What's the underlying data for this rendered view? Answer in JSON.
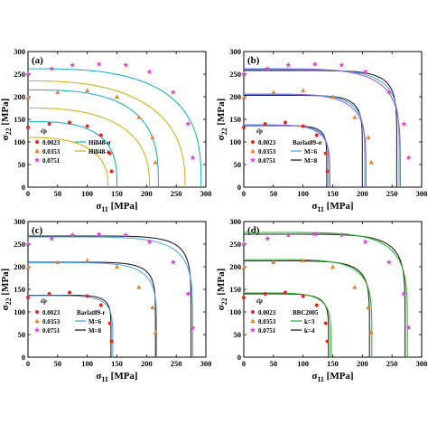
{
  "colors": {
    "red": "#e02a1f",
    "orange": "#e8822a",
    "magenta": "#e03fd8",
    "cyan": "#1fb3c9",
    "yellow": "#d4b21a",
    "black": "#222222",
    "blue": "#4aa3f2",
    "purple": "#8b5ad8",
    "green": "#2db82d"
  },
  "chart_data": [
    {
      "type": "scatter",
      "panel_label": "(a)",
      "xlabel": "σ11 [MPa]",
      "ylabel": "σ22 [MPa]",
      "xlim": [
        0,
        300
      ],
      "ylim": [
        0,
        300
      ],
      "xticks": [
        0,
        50,
        100,
        150,
        200,
        250,
        300
      ],
      "yticks": [
        0,
        50,
        100,
        150,
        200,
        250,
        300
      ],
      "legend_header": "ε̄p",
      "series": [
        {
          "name": "0.0023",
          "marker": "circle",
          "color": "red",
          "x": [
            0,
            36,
            70,
            100,
            123,
            138,
            141
          ],
          "y": [
            132,
            140,
            143,
            135,
            115,
            75,
            35
          ]
        },
        {
          "name": "0.0353",
          "marker": "triangle",
          "color": "orange",
          "x": [
            0,
            50,
            100,
            150,
            187,
            210,
            215
          ],
          "y": [
            198,
            210,
            214,
            200,
            155,
            110,
            55
          ]
        },
        {
          "name": "0.0751",
          "marker": "star",
          "color": "magenta",
          "x": [
            0,
            40,
            75,
            120,
            165,
            205,
            245,
            270,
            278
          ],
          "y": [
            250,
            262,
            270,
            272,
            270,
            255,
            210,
            140,
            65
          ]
        }
      ],
      "curves": [
        {
          "name": "Hill48-σ",
          "color": "cyan",
          "scale": [
            130,
            145,
            250,
            290
          ]
        },
        {
          "name": "Hill48-r",
          "color": "yellow",
          "scale": [
            130,
            125,
            215,
            195
          ]
        }
      ]
    },
    {
      "type": "scatter",
      "panel_label": "(b)",
      "xlabel": "σ11 [MPa]",
      "ylabel": "σ22 [MPa]",
      "xlim": [
        0,
        300
      ],
      "ylim": [
        0,
        300
      ],
      "xticks": [
        0,
        50,
        100,
        150,
        200,
        250,
        300
      ],
      "yticks": [
        0,
        50,
        100,
        150,
        200,
        250,
        300
      ],
      "legend_header": "ε̄p",
      "series": [
        {
          "name": "0.0023",
          "marker": "circle",
          "color": "red",
          "x": [
            0,
            36,
            70,
            100,
            123,
            138,
            141
          ],
          "y": [
            132,
            140,
            143,
            135,
            115,
            75,
            35
          ]
        },
        {
          "name": "0.0353",
          "marker": "triangle",
          "color": "orange",
          "x": [
            0,
            50,
            100,
            150,
            187,
            210,
            215
          ],
          "y": [
            198,
            210,
            214,
            200,
            155,
            110,
            55
          ]
        },
        {
          "name": "0.0751",
          "marker": "star",
          "color": "magenta",
          "x": [
            0,
            40,
            75,
            120,
            165,
            205,
            245,
            270,
            278
          ],
          "y": [
            250,
            262,
            270,
            272,
            270,
            255,
            210,
            140,
            65
          ]
        }
      ],
      "curves": [
        {
          "name": "Barlat89-σ",
          "color": "purple"
        },
        {
          "name": "M=6",
          "color": "blue"
        },
        {
          "name": "M=8",
          "color": "black"
        }
      ]
    },
    {
      "type": "scatter",
      "panel_label": "(c)",
      "xlabel": "σ11 [MPa]",
      "ylabel": "σ22 [MPa]",
      "xlim": [
        0,
        300
      ],
      "ylim": [
        0,
        300
      ],
      "xticks": [
        0,
        50,
        100,
        150,
        200,
        250,
        300
      ],
      "yticks": [
        0,
        50,
        100,
        150,
        200,
        250,
        300
      ],
      "legend_header": "ε̄p",
      "series": [
        {
          "name": "0.0023",
          "marker": "circle",
          "color": "red",
          "x": [
            0,
            36,
            70,
            100,
            123,
            138,
            141
          ],
          "y": [
            132,
            140,
            143,
            135,
            115,
            75,
            35
          ]
        },
        {
          "name": "0.0353",
          "marker": "triangle",
          "color": "orange",
          "x": [
            0,
            50,
            100,
            150,
            187,
            210,
            215
          ],
          "y": [
            198,
            210,
            214,
            200,
            155,
            110,
            55
          ]
        },
        {
          "name": "0.0751",
          "marker": "star",
          "color": "magenta",
          "x": [
            0,
            40,
            75,
            120,
            165,
            205,
            245,
            270,
            278
          ],
          "y": [
            250,
            262,
            270,
            272,
            270,
            255,
            210,
            140,
            65
          ]
        }
      ],
      "curves": [
        {
          "name": "Barlat89-r",
          "color": "black"
        },
        {
          "name": "M=6",
          "color": "blue"
        },
        {
          "name": "M=8",
          "color": "black"
        }
      ]
    },
    {
      "type": "scatter",
      "panel_label": "(d)",
      "xlabel": "σ11 [MPa]",
      "ylabel": "σ22 [MPa]",
      "xlim": [
        0,
        300
      ],
      "ylim": [
        0,
        300
      ],
      "xticks": [
        0,
        50,
        100,
        150,
        200,
        250,
        300
      ],
      "yticks": [
        0,
        50,
        100,
        150,
        200,
        250,
        300
      ],
      "legend_header": "ε̄p",
      "series": [
        {
          "name": "0.0023",
          "marker": "circle",
          "color": "red",
          "x": [
            0,
            36,
            70,
            100,
            123,
            138,
            141
          ],
          "y": [
            132,
            140,
            143,
            135,
            115,
            75,
            35
          ]
        },
        {
          "name": "0.0353",
          "marker": "triangle",
          "color": "orange",
          "x": [
            0,
            50,
            100,
            150,
            187,
            210,
            215
          ],
          "y": [
            198,
            210,
            214,
            200,
            155,
            110,
            55
          ]
        },
        {
          "name": "0.0751",
          "marker": "star",
          "color": "magenta",
          "x": [
            0,
            40,
            75,
            120,
            165,
            205,
            245,
            270,
            278
          ],
          "y": [
            250,
            262,
            270,
            272,
            270,
            255,
            210,
            140,
            65
          ]
        }
      ],
      "curves": [
        {
          "name": "BBC2005",
          "color": "black"
        },
        {
          "name": "k=3",
          "color": "green"
        },
        {
          "name": "k=4",
          "color": "black"
        }
      ]
    }
  ]
}
